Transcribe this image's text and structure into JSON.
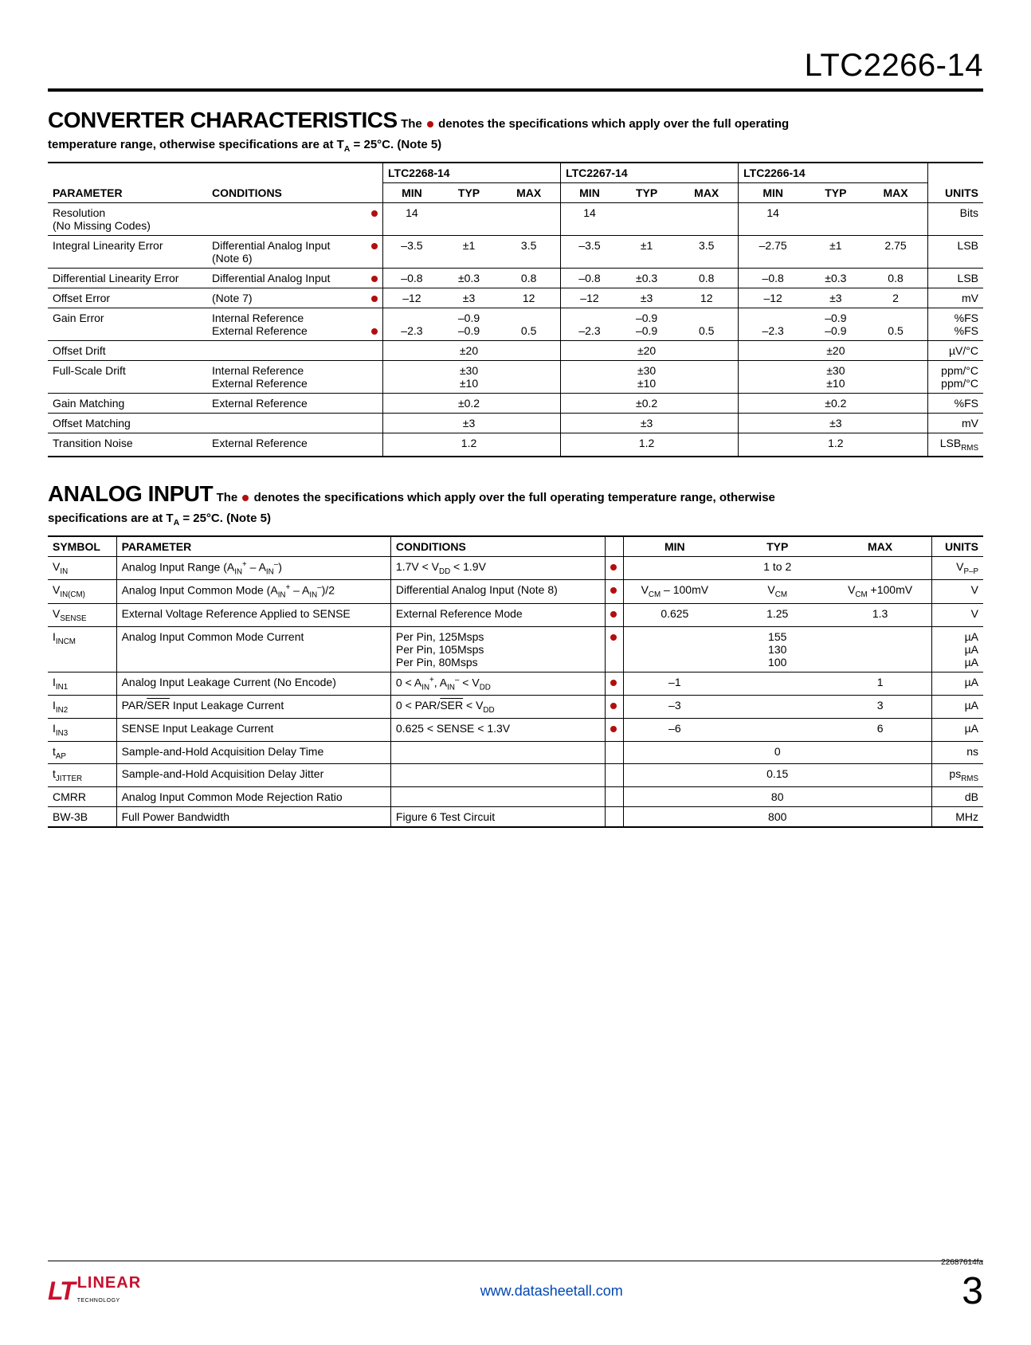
{
  "header": {
    "part_number": "LTC2266-14"
  },
  "section1": {
    "title": "CONVERTER CHARACTERISTICS",
    "desc_pre": "The ",
    "desc_post": " denotes the specifications which apply over the full operating",
    "desc_line2_pre": "temperature range, otherwise specifications are at T",
    "desc_line2_sub": "A",
    "desc_line2_post": " = 25°C. (Note 5)",
    "group_headers": [
      "LTC2268-14",
      "LTC2267-14",
      "LTC2266-14"
    ],
    "col_labels": {
      "parameter": "PARAMETER",
      "conditions": "CONDITIONS",
      "min": "MIN",
      "typ": "TYP",
      "max": "MAX",
      "units": "UNITS"
    },
    "rows": [
      {
        "param": "Resolution\n(No Missing Codes)",
        "cond": "",
        "dot": true,
        "c1": {
          "min": "14",
          "typ": "",
          "max": ""
        },
        "c2": {
          "min": "14",
          "typ": "",
          "max": ""
        },
        "c3": {
          "min": "14",
          "typ": "",
          "max": ""
        },
        "units": "Bits"
      },
      {
        "param": "Integral Linearity Error",
        "cond": "Differential Analog Input\n(Note 6)",
        "dot": true,
        "c1": {
          "min": "–3.5",
          "typ": "±1",
          "max": "3.5"
        },
        "c2": {
          "min": "–3.5",
          "typ": "±1",
          "max": "3.5"
        },
        "c3": {
          "min": "–2.75",
          "typ": "±1",
          "max": "2.75"
        },
        "units": "LSB"
      },
      {
        "param": "Differential Linearity Error",
        "cond": "Differential Analog Input",
        "dot": true,
        "c1": {
          "min": "–0.8",
          "typ": "±0.3",
          "max": "0.8"
        },
        "c2": {
          "min": "–0.8",
          "typ": "±0.3",
          "max": "0.8"
        },
        "c3": {
          "min": "–0.8",
          "typ": "±0.3",
          "max": "0.8"
        },
        "units": "LSB"
      },
      {
        "param": "Offset Error",
        "cond": "(Note 7)",
        "dot": true,
        "c1": {
          "min": "–12",
          "typ": "±3",
          "max": "12"
        },
        "c2": {
          "min": "–12",
          "typ": "±3",
          "max": "12"
        },
        "c3": {
          "min": "–12",
          "typ": "±3",
          "max": "2"
        },
        "units": "mV"
      },
      {
        "param": "Gain Error",
        "cond": "Internal Reference\nExternal Reference",
        "dot2": true,
        "c1": {
          "min": "\n–2.3",
          "typ": "–0.9\n–0.9",
          "max": "\n0.5"
        },
        "c2": {
          "min": "\n–2.3",
          "typ": "–0.9\n–0.9",
          "max": "\n0.5"
        },
        "c3": {
          "min": "\n–2.3",
          "typ": "–0.9\n–0.9",
          "max": "\n0.5"
        },
        "units": "%FS\n%FS"
      },
      {
        "param": "Offset Drift",
        "cond": "",
        "dot": false,
        "c1": {
          "min": "",
          "typ": "±20",
          "max": ""
        },
        "c2": {
          "min": "",
          "typ": "±20",
          "max": ""
        },
        "c3": {
          "min": "",
          "typ": "±20",
          "max": ""
        },
        "units": "µV/°C"
      },
      {
        "param": "Full-Scale Drift",
        "cond": "Internal Reference\nExternal Reference",
        "dot": false,
        "c1": {
          "min": "",
          "typ": "±30\n±10",
          "max": ""
        },
        "c2": {
          "min": "",
          "typ": "±30\n±10",
          "max": ""
        },
        "c3": {
          "min": "",
          "typ": "±30\n±10",
          "max": ""
        },
        "units": "ppm/°C\nppm/°C"
      },
      {
        "param": "Gain Matching",
        "cond": "External Reference",
        "dot": false,
        "c1": {
          "min": "",
          "typ": "±0.2",
          "max": ""
        },
        "c2": {
          "min": "",
          "typ": "±0.2",
          "max": ""
        },
        "c3": {
          "min": "",
          "typ": "±0.2",
          "max": ""
        },
        "units": "%FS"
      },
      {
        "param": "Offset Matching",
        "cond": "",
        "dot": false,
        "c1": {
          "min": "",
          "typ": "±3",
          "max": ""
        },
        "c2": {
          "min": "",
          "typ": "±3",
          "max": ""
        },
        "c3": {
          "min": "",
          "typ": "±3",
          "max": ""
        },
        "units": "mV"
      },
      {
        "param": "Transition Noise",
        "cond": "External Reference",
        "dot": false,
        "c1": {
          "min": "",
          "typ": "1.2",
          "max": ""
        },
        "c2": {
          "min": "",
          "typ": "1.2",
          "max": ""
        },
        "c3": {
          "min": "",
          "typ": "1.2",
          "max": ""
        },
        "units_html": "LSB<sub>RMS</sub>"
      }
    ]
  },
  "section2": {
    "title": "ANALOG INPUT",
    "desc_pre": "The ",
    "desc_post": " denotes the specifications which apply over the full operating temperature range, otherwise",
    "desc_line2_pre": "specifications are at T",
    "desc_line2_sub": "A",
    "desc_line2_post": " = 25°C. (Note 5)",
    "col_labels": {
      "symbol": "SYMBOL",
      "parameter": "PARAMETER",
      "conditions": "CONDITIONS",
      "min": "MIN",
      "typ": "TYP",
      "max": "MAX",
      "units": "UNITS"
    },
    "rows": [
      {
        "sym_html": "V<sub>IN</sub>",
        "param_html": "Analog Input Range (A<sub>IN</sub><sup>+</sup> – A<sub>IN</sub><sup>–</sup>)",
        "cond_html": "1.7V &lt; V<sub>DD</sub> &lt; 1.9V",
        "dot": true,
        "min": "",
        "typ": "1 to 2",
        "max": "",
        "units_html": "V<sub>P–P</sub>"
      },
      {
        "sym_html": "V<sub>IN(CM)</sub>",
        "param_html": "Analog Input Common Mode (A<sub>IN</sub><sup>+</sup> – A<sub>IN</sub><sup>–</sup>)/2",
        "cond_html": "Differential Analog Input (Note 8)",
        "dot": true,
        "min_html": "V<sub>CM</sub> – 100mV",
        "typ_html": "V<sub>CM</sub>",
        "max_html": "V<sub>CM</sub> +100mV",
        "units": "V"
      },
      {
        "sym_html": "V<sub>SENSE</sub>",
        "param": "External Voltage Reference Applied to SENSE",
        "cond": "External Reference Mode",
        "dot": true,
        "min": "0.625",
        "typ": "1.25",
        "max": "1.3",
        "units": "V"
      },
      {
        "sym_html": "I<sub>INCM</sub>",
        "param": "Analog Input Common Mode Current",
        "cond": "Per Pin, 125Msps\nPer Pin, 105Msps\nPer Pin, 80Msps",
        "dot": true,
        "min": "",
        "typ": "155\n130\n100",
        "max": "",
        "units": "µA\nµA\nµA"
      },
      {
        "sym_html": "I<sub>IN1</sub>",
        "param": "Analog Input Leakage Current (No Encode)",
        "cond_html": "0 &lt; A<sub>IN</sub><sup>+</sup>, A<sub>IN</sub><sup>–</sup> &lt; V<sub>DD</sub>",
        "dot": true,
        "min": "–1",
        "typ": "",
        "max": "1",
        "units": "µA"
      },
      {
        "sym_html": "I<sub>IN2</sub>",
        "param_html": "PAR/<span class='overline'>SER</span> Input Leakage Current",
        "cond_html": "0 &lt; PAR/<span class='overline'>SER</span> &lt; V<sub>DD</sub>",
        "dot": true,
        "min": "–3",
        "typ": "",
        "max": "3",
        "units": "µA"
      },
      {
        "sym_html": "I<sub>IN3</sub>",
        "param": "SENSE Input Leakage Current",
        "cond": "0.625 < SENSE < 1.3V",
        "dot": true,
        "min": "–6",
        "typ": "",
        "max": "6",
        "units": "µA"
      },
      {
        "sym_html": "t<sub>AP</sub>",
        "param": "Sample-and-Hold Acquisition Delay Time",
        "cond": "",
        "dot": false,
        "min": "",
        "typ": "0",
        "max": "",
        "units": "ns"
      },
      {
        "sym_html": "t<sub>JITTER</sub>",
        "param": "Sample-and-Hold Acquisition Delay Jitter",
        "cond": "",
        "dot": false,
        "min": "",
        "typ": "0.15",
        "max": "",
        "units_html": "ps<sub>RMS</sub>"
      },
      {
        "sym": "CMRR",
        "param": "Analog Input Common Mode Rejection Ratio",
        "cond": "",
        "dot": false,
        "min": "",
        "typ": "80",
        "max": "",
        "units": "dB"
      },
      {
        "sym": "BW-3B",
        "param": "Full Power Bandwidth",
        "cond": "Figure 6 Test Circuit",
        "dot": false,
        "min": "",
        "typ": "800",
        "max": "",
        "units": "MHz"
      }
    ]
  },
  "footer": {
    "doc_code": "22687614fa",
    "logo_mark": "LT",
    "logo_text": "LINEAR",
    "logo_sub": "TECHNOLOGY",
    "url": "www.datasheetall.com",
    "page": "3"
  },
  "style": {
    "accent_color": "#b30e0e",
    "logo_color": "#c8102e",
    "link_color": "#0047b3",
    "border_color": "#000000",
    "background": "#ffffff"
  }
}
